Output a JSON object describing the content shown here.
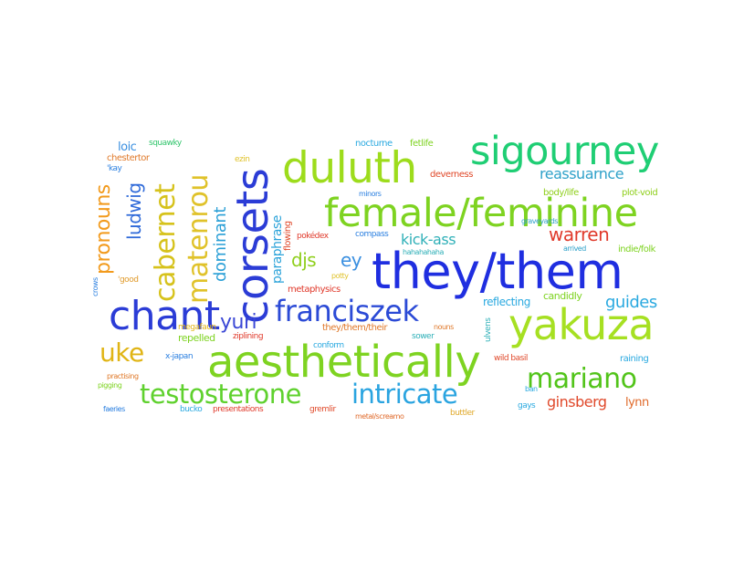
{
  "word_cloud": {
    "words": [
      {
        "text": "they/them",
        "color": "#1f2ee0"
      },
      {
        "text": "female/feminine",
        "color": "#7ed321"
      },
      {
        "text": "sigourney",
        "color": "#1fce74"
      },
      {
        "text": "duluth",
        "color": "#9ddc1c"
      },
      {
        "text": "yakuza",
        "color": "#a6e022"
      },
      {
        "text": "aesthetically",
        "color": "#7ed321"
      },
      {
        "text": "corsets",
        "color": "#2b3cd6"
      },
      {
        "text": "chant",
        "color": "#2b3cd6"
      },
      {
        "text": "franciszek",
        "color": "#2b4ad6"
      },
      {
        "text": "testosterone",
        "color": "#5fd12e"
      },
      {
        "text": "intricate",
        "color": "#2aa4e0"
      },
      {
        "text": "mariano",
        "color": "#52c41a"
      },
      {
        "text": "cabernet",
        "color": "#d6c21b"
      },
      {
        "text": "matenrou",
        "color": "#e0c22a"
      },
      {
        "text": "pronouns",
        "color": "#f29a1c"
      },
      {
        "text": "uke",
        "color": "#e0b414"
      },
      {
        "text": "yuri",
        "color": "#3b48d6"
      },
      {
        "text": "warren",
        "color": "#e03a2b"
      },
      {
        "text": "ludwig",
        "color": "#2f6ad9"
      },
      {
        "text": "djs",
        "color": "#8fcf1c"
      },
      {
        "text": "ey",
        "color": "#3a8fe0"
      },
      {
        "text": "kick-ass",
        "color": "#2fb0b8"
      },
      {
        "text": "reassuarnce",
        "color": "#2fa1c9"
      },
      {
        "text": "dominant",
        "color": "#2a9fd6"
      },
      {
        "text": "paraphrase",
        "color": "#2aa2d9"
      },
      {
        "text": "guides",
        "color": "#2aa9e0"
      },
      {
        "text": "ginsberg",
        "color": "#e0492b"
      },
      {
        "text": "lynn",
        "color": "#e06a2b"
      },
      {
        "text": "loic",
        "color": "#3a8fe0"
      },
      {
        "text": "chestertor",
        "color": "#e07a2b"
      },
      {
        "text": "squawky",
        "color": "#2fc46a"
      },
      {
        "text": "nocturne",
        "color": "#2aa9e0"
      },
      {
        "text": "fetlife",
        "color": "#7ed321"
      },
      {
        "text": "deverness",
        "color": "#e04a2b"
      },
      {
        "text": "body/life",
        "color": "#8fcf1c"
      },
      {
        "text": "plot-void",
        "color": "#8fcf1c"
      },
      {
        "text": "flowing",
        "color": "#e0492b"
      },
      {
        "text": "minors",
        "color": "#2a7fe0"
      },
      {
        "text": "compass",
        "color": "#2a7fe0"
      },
      {
        "text": "graveyards",
        "color": "#2fa1c9"
      },
      {
        "text": "arrived",
        "color": "#2fa1c9"
      },
      {
        "text": "indie/folk",
        "color": "#7ed321"
      },
      {
        "text": "pokédex",
        "color": "#e03a2b"
      },
      {
        "text": "metaphysics",
        "color": "#e0392b"
      },
      {
        "text": "reflecting",
        "color": "#2aa9e0"
      },
      {
        "text": "candidly",
        "color": "#7ed321"
      },
      {
        "text": "they/them/their",
        "color": "#e0792b"
      },
      {
        "text": "nouns",
        "color": "#e0792b"
      },
      {
        "text": "megafaun",
        "color": "#e0b414"
      },
      {
        "text": "repelled",
        "color": "#7ed321"
      },
      {
        "text": "ziplining",
        "color": "#e03a2b"
      },
      {
        "text": "conform",
        "color": "#2aa9e0"
      },
      {
        "text": "sower",
        "color": "#2fb0b8"
      },
      {
        "text": "wild basil",
        "color": "#e0492b"
      },
      {
        "text": "raining",
        "color": "#2aa9e0"
      },
      {
        "text": "x-japan",
        "color": "#2a7fe0"
      },
      {
        "text": "'good",
        "color": "#e09a2b"
      },
      {
        "text": "crows",
        "color": "#2a7fe0"
      },
      {
        "text": "pigging",
        "color": "#7ed321"
      },
      {
        "text": "faeries",
        "color": "#2a7fe0"
      },
      {
        "text": "bucko",
        "color": "#2aa9e0"
      },
      {
        "text": "presentations",
        "color": "#e03a2b"
      },
      {
        "text": "gremlir",
        "color": "#e04a2b"
      },
      {
        "text": "metal/screamo",
        "color": "#e06a2b"
      },
      {
        "text": "buttler",
        "color": "#e0a92b"
      },
      {
        "text": "gays",
        "color": "#2aa9e0"
      },
      {
        "text": "ban",
        "color": "#2aa9e0"
      },
      {
        "text": "ulvens",
        "color": "#2fb0b8"
      },
      {
        "text": "ezin",
        "color": "#e0c22a"
      },
      {
        "text": "hahahahaha",
        "color": "#2fb0b8"
      },
      {
        "text": "practising",
        "color": "#e07a2b"
      },
      {
        "text": "potty",
        "color": "#e0c22a"
      },
      {
        "text": "'kay",
        "color": "#2a7fe0"
      }
    ]
  }
}
